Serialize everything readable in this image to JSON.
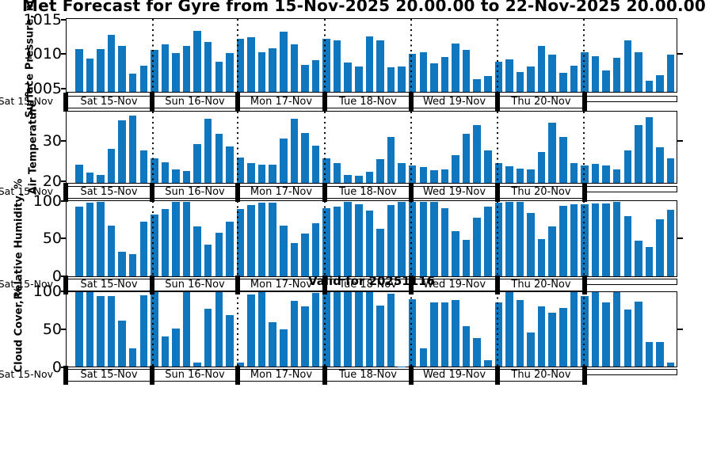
{
  "figure": {
    "title": "Met Forecast for Gyre from 15-Nov-2025 20.00.00 to 22-Nov-2025 20.00.00",
    "annotation": "Valid for 20251116",
    "start_tick_label": "Sat 15-Nov",
    "bar_color": "#1076bd",
    "text_color": "#000000",
    "background_color": "#ffffff"
  },
  "day_labels": [
    "Sat 15-Nov",
    "Sun 16-Nov",
    "Mon 17-Nov",
    "Tue 18-Nov",
    "Wed 19-Nov",
    "Thu 20-Nov",
    ""
  ],
  "chart_data": [
    {
      "type": "bar",
      "title": "",
      "xlabel": "",
      "ylabel": "Surface Pressure, mb",
      "yticks": [
        1005,
        1010,
        1015
      ],
      "right_tick": 1010,
      "ylim": [
        1004.4,
        1015.2
      ],
      "grid": "dotted vertical lines at day boundaries",
      "bars_per_day": 8,
      "values": [
        1010.7,
        1009.3,
        1010.7,
        1012.9,
        1011.2,
        1007.1,
        1008.3,
        1010.6,
        1011.4,
        1010.2,
        1011.2,
        1013.4,
        1011.8,
        1008.9,
        1010.2,
        1012.3,
        1012.5,
        1010.3,
        1010.8,
        1013.3,
        1011.5,
        1008.4,
        1009.1,
        1012.3,
        1012.0,
        1008.8,
        1008.2,
        1012.6,
        1012.0,
        1008.0,
        1008.2,
        1010.0,
        1010.3,
        1008.6,
        1009.6,
        1011.6,
        1010.6,
        1006.3,
        1006.7,
        1008.9,
        1009.2,
        1007.3,
        1008.1,
        1011.2,
        1009.9,
        1007.2,
        1008.3,
        1010.3,
        1009.7,
        1007.6,
        1009.5,
        1012.0,
        1010.3,
        1006.1,
        1006.9,
        1009.9
      ]
    },
    {
      "type": "bar",
      "title": "",
      "xlabel": "",
      "ylabel": "Air Temperature",
      "yticks": [
        20,
        30
      ],
      "right_tick": 30,
      "ylim": [
        19.4,
        37.4
      ],
      "grid": "dotted vertical lines at day boundaries",
      "bars_per_day": 8,
      "values": [
        24.0,
        22.1,
        21.4,
        28.0,
        35.3,
        36.4,
        27.7,
        25.7,
        24.7,
        22.8,
        22.4,
        29.3,
        35.6,
        31.8,
        28.7,
        25.9,
        24.5,
        24.1,
        24.1,
        30.7,
        35.6,
        32.0,
        28.8,
        25.7,
        24.5,
        21.4,
        21.3,
        22.3,
        25.4,
        31.1,
        24.5,
        23.9,
        23.4,
        22.6,
        22.8,
        26.5,
        31.8,
        34.1,
        27.7,
        24.4,
        23.6,
        23.1,
        22.9,
        27.2,
        34.6,
        31.1,
        24.5,
        23.9,
        24.2,
        23.8,
        22.9,
        27.7,
        34.0,
        36.1,
        28.4,
        25.6
      ]
    },
    {
      "type": "bar",
      "title": "",
      "xlabel": "",
      "ylabel": "Relative Humidity, %",
      "yticks": [
        0,
        50,
        100
      ],
      "right_tick": 50,
      "ylim": [
        -1.5,
        101
      ],
      "grid": "dotted vertical lines at day boundaries",
      "bars_per_day": 8,
      "values": [
        93,
        99,
        100,
        68,
        32,
        29,
        73,
        83,
        90,
        100,
        100,
        67,
        42,
        58,
        73,
        90,
        96,
        99,
        99,
        68,
        44,
        57,
        71,
        91,
        94,
        100,
        97,
        88,
        63,
        96,
        100,
        100,
        100,
        100,
        91,
        60,
        48,
        78,
        94,
        99,
        100,
        100,
        85,
        49,
        66,
        95,
        97,
        97,
        98,
        98,
        100,
        81,
        47,
        38,
        76,
        89
      ]
    },
    {
      "type": "bar",
      "title": "",
      "xlabel": "",
      "ylabel": "Cloud Cover, %",
      "yticks": [
        0,
        50,
        100
      ],
      "right_tick": 50,
      "ylim": [
        -0.3,
        100.4
      ],
      "grid": "dotted vertical lines at day boundaries",
      "bars_per_day": 8,
      "values": [
        100,
        100,
        95,
        95,
        62,
        24,
        96,
        100,
        40,
        51,
        100,
        5,
        78,
        100,
        69,
        5,
        97,
        100,
        60,
        50,
        89,
        81,
        99,
        100,
        100,
        100,
        100,
        100,
        82,
        98,
        0,
        91,
        24,
        86,
        86,
        90,
        54,
        38,
        8,
        86,
        100,
        90,
        46,
        81,
        73,
        79,
        100,
        95,
        100,
        86,
        100,
        77,
        88,
        33,
        33,
        5
      ]
    }
  ]
}
